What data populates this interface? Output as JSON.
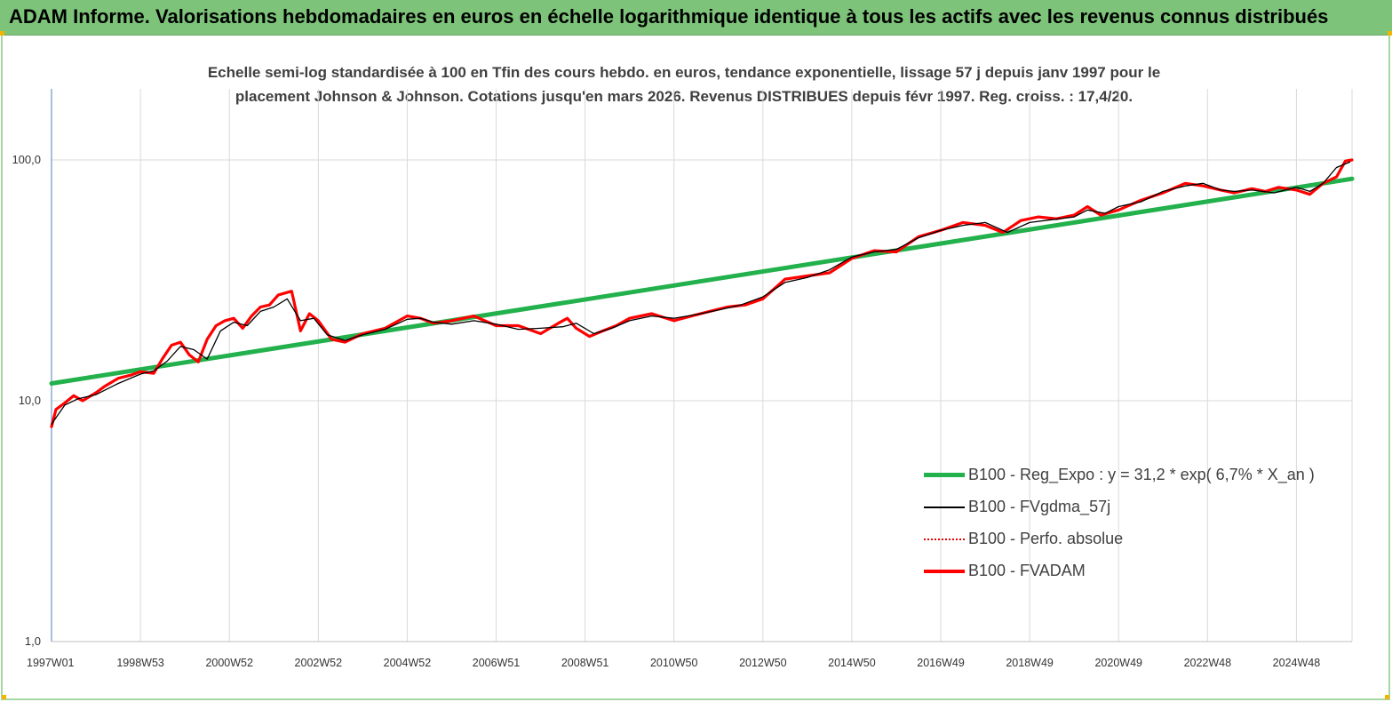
{
  "banner": {
    "title": "ADAM Informe. Valorisations hebdomadaires en euros en échelle logarithmique identique à tous les actifs avec les revenus connus distribués",
    "color": "#7dc47a"
  },
  "chart_data": {
    "type": "line",
    "title_line1": "Echelle semi-log standardisée à 100 en Tfin des cours hebdo. en euros, tendance exponentielle, lissage 57 j depuis janv 1997 pour le",
    "title_line2": "placement Johnson & Johnson. Cotations jusqu'en mars 2026.  Revenus DISTRIBUES depuis févr 1997.  Reg. croiss. : 17,4/20.",
    "y_scale": "log",
    "ylim": [
      1,
      200
    ],
    "y_ticks": [
      "1,0",
      "10,0",
      "100,0"
    ],
    "xlim": [
      1997.0,
      2026.25
    ],
    "x_ticks": [
      {
        "label": "1997W01",
        "x": 1997.0
      },
      {
        "label": "1998W53",
        "x": 1999.0
      },
      {
        "label": "2000W52",
        "x": 2001.0
      },
      {
        "label": "2002W52",
        "x": 2003.0
      },
      {
        "label": "2004W52",
        "x": 2005.0
      },
      {
        "label": "2006W51",
        "x": 2007.0
      },
      {
        "label": "2008W51",
        "x": 2009.0
      },
      {
        "label": "2010W50",
        "x": 2011.0
      },
      {
        "label": "2012W50",
        "x": 2013.0
      },
      {
        "label": "2014W50",
        "x": 2015.0
      },
      {
        "label": "2016W49",
        "x": 2017.0
      },
      {
        "label": "2018W49",
        "x": 2019.0
      },
      {
        "label": "2020W49",
        "x": 2021.0
      },
      {
        "label": "2022W48",
        "x": 2023.0
      },
      {
        "label": "2024W48",
        "x": 2025.0
      }
    ],
    "grid": "vertical",
    "legend_position": "bottom-right",
    "series": [
      {
        "name": "B100 - Reg_Expo : y = 31,2 *  exp( 6,7% *   X_an )",
        "color": "#22b14c",
        "style": "thick",
        "x": [
          1997.0,
          2026.25
        ],
        "y": [
          11.8,
          83.5
        ]
      },
      {
        "name": "B100 - FVgdma_57j",
        "color": "#000000",
        "style": "thin",
        "x": [
          1997.0,
          1997.3,
          1997.6,
          1998.0,
          1998.5,
          1999.0,
          1999.3,
          1999.6,
          1999.9,
          2000.2,
          2000.5,
          2000.8,
          2001.1,
          2001.4,
          2001.7,
          2002.0,
          2002.3,
          2002.6,
          2002.9,
          2003.2,
          2003.6,
          2004.0,
          2004.5,
          2005.0,
          2005.3,
          2005.6,
          2006.0,
          2006.5,
          2007.0,
          2007.5,
          2008.0,
          2008.5,
          2008.8,
          2009.2,
          2009.6,
          2010.0,
          2010.5,
          2011.0,
          2011.5,
          2012.0,
          2012.5,
          2013.0,
          2013.5,
          2014.0,
          2014.5,
          2015.0,
          2015.5,
          2016.0,
          2016.5,
          2017.0,
          2017.5,
          2018.0,
          2018.5,
          2019.0,
          2019.5,
          2020.0,
          2020.3,
          2020.7,
          2021.0,
          2021.5,
          2022.0,
          2022.5,
          2022.9,
          2023.3,
          2023.6,
          2024.0,
          2024.5,
          2025.0,
          2025.3,
          2025.6,
          2025.9,
          2026.2
        ],
        "y": [
          8.0,
          9.6,
          10.2,
          10.6,
          11.8,
          12.9,
          13.3,
          14.6,
          16.8,
          16.3,
          14.9,
          19.5,
          21.2,
          20.5,
          23.5,
          24.5,
          26.5,
          21.5,
          22.0,
          18.8,
          17.8,
          18.8,
          19.8,
          21.8,
          22.0,
          21.2,
          20.8,
          21.5,
          20.8,
          19.8,
          20.0,
          20.3,
          21.0,
          19.0,
          20.0,
          21.5,
          22.5,
          22.0,
          22.8,
          23.8,
          25.0,
          27.0,
          31.0,
          32.5,
          35.0,
          39.5,
          41.5,
          42.5,
          47.5,
          51.0,
          53.5,
          55.0,
          50.0,
          55.0,
          56.5,
          58.0,
          62.0,
          60.0,
          64.0,
          67.0,
          74.0,
          78.0,
          80.0,
          75.0,
          74.0,
          75.0,
          73.0,
          77.0,
          74.0,
          80.0,
          93.0,
          98.0
        ]
      },
      {
        "name": "B100 - Perfo. absolue",
        "color": "#e60000",
        "style": "dotted"
      },
      {
        "name": "B100 - FVADAM",
        "color": "#ff0000",
        "style": "thick",
        "x": [
          1997.0,
          1997.1,
          1997.3,
          1997.5,
          1997.7,
          1998.0,
          1998.2,
          1998.5,
          1998.8,
          1999.0,
          1999.3,
          1999.5,
          1999.7,
          1999.9,
          2000.1,
          2000.3,
          2000.5,
          2000.7,
          2000.9,
          2001.1,
          2001.3,
          2001.5,
          2001.7,
          2001.9,
          2002.1,
          2002.4,
          2002.6,
          2002.8,
          2003.0,
          2003.3,
          2003.6,
          2004.0,
          2004.5,
          2005.0,
          2005.3,
          2005.6,
          2006.0,
          2006.5,
          2007.0,
          2007.5,
          2008.0,
          2008.4,
          2008.6,
          2008.8,
          2009.1,
          2009.4,
          2009.7,
          2010.0,
          2010.5,
          2011.0,
          2011.4,
          2011.8,
          2012.2,
          2012.6,
          2013.0,
          2013.5,
          2014.0,
          2014.5,
          2015.0,
          2015.5,
          2016.0,
          2016.5,
          2017.0,
          2017.5,
          2018.0,
          2018.4,
          2018.8,
          2019.2,
          2019.6,
          2020.0,
          2020.3,
          2020.6,
          2021.0,
          2021.5,
          2022.0,
          2022.5,
          2022.9,
          2023.3,
          2023.6,
          2024.0,
          2024.3,
          2024.6,
          2025.0,
          2025.3,
          2025.6,
          2025.9,
          2026.1,
          2026.25
        ],
        "y": [
          7.8,
          9.2,
          9.8,
          10.5,
          10.0,
          10.8,
          11.5,
          12.4,
          12.8,
          13.2,
          13.0,
          15.0,
          17.0,
          17.5,
          15.5,
          14.5,
          18.0,
          20.5,
          21.5,
          22.0,
          20.0,
          22.5,
          24.5,
          25.0,
          27.5,
          28.5,
          19.5,
          23.0,
          21.5,
          18.0,
          17.5,
          19.0,
          20.0,
          22.5,
          22.0,
          21.0,
          21.5,
          22.5,
          20.5,
          20.5,
          19.0,
          21.0,
          22.0,
          20.0,
          18.5,
          19.5,
          20.5,
          22.0,
          23.0,
          21.5,
          22.5,
          23.5,
          24.5,
          25.0,
          26.5,
          32.0,
          33.0,
          34.0,
          39.0,
          42.0,
          41.5,
          48.0,
          51.0,
          55.0,
          53.5,
          50.0,
          56.0,
          58.0,
          57.0,
          59.0,
          64.0,
          59.0,
          62.0,
          68.0,
          73.0,
          80.0,
          78.0,
          75.0,
          73.0,
          76.0,
          74.0,
          77.0,
          75.0,
          72.0,
          80.0,
          85.0,
          99.0,
          100.0
        ]
      }
    ]
  }
}
